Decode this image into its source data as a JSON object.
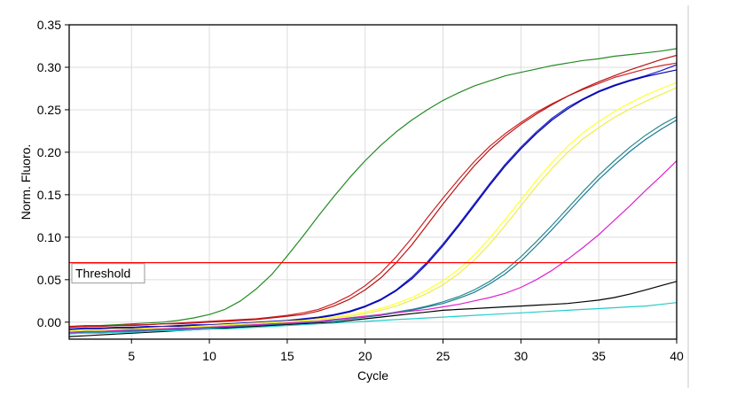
{
  "chart_data": {
    "type": "line",
    "xlabel": "Cycle",
    "ylabel": "Norm. Fluoro.",
    "xlim": [
      1,
      40
    ],
    "ylim": [
      -0.02,
      0.35
    ],
    "x_ticks": [
      5,
      10,
      15,
      20,
      25,
      30,
      35,
      40
    ],
    "y_ticks": [
      0.0,
      0.05,
      0.1,
      0.15,
      0.2,
      0.25,
      0.3,
      0.35
    ],
    "y_tick_labels": [
      "0.00",
      "0.05",
      "0.10",
      "0.15",
      "0.20",
      "0.25",
      "0.30",
      "0.35"
    ],
    "grid": true,
    "threshold": {
      "label": "Threshold",
      "value": 0.07,
      "color": "#ff0000"
    },
    "x": [
      1,
      2,
      3,
      4,
      5,
      6,
      7,
      8,
      9,
      10,
      11,
      12,
      13,
      14,
      15,
      16,
      17,
      18,
      19,
      20,
      21,
      22,
      23,
      24,
      25,
      26,
      27,
      28,
      29,
      30,
      31,
      32,
      33,
      34,
      35,
      36,
      37,
      38,
      39,
      40
    ],
    "series": [
      {
        "color": "#228b22",
        "values": [
          -0.005,
          -0.004,
          -0.004,
          -0.003,
          -0.002,
          -0.001,
          0.0,
          0.002,
          0.005,
          0.009,
          0.015,
          0.025,
          0.039,
          0.056,
          0.078,
          0.101,
          0.125,
          0.148,
          0.17,
          0.19,
          0.208,
          0.224,
          0.238,
          0.25,
          0.261,
          0.27,
          0.278,
          0.284,
          0.29,
          0.294,
          0.298,
          0.302,
          0.305,
          0.308,
          0.31,
          0.313,
          0.315,
          0.317,
          0.319,
          0.322
        ]
      },
      {
        "color": "#cc2222",
        "values": [
          -0.005,
          -0.005,
          -0.004,
          -0.004,
          -0.003,
          -0.003,
          -0.002,
          -0.001,
          0.0,
          0.001,
          0.002,
          0.003,
          0.004,
          0.006,
          0.008,
          0.011,
          0.015,
          0.022,
          0.031,
          0.043,
          0.058,
          0.077,
          0.099,
          0.123,
          0.146,
          0.168,
          0.189,
          0.207,
          0.222,
          0.235,
          0.247,
          0.257,
          0.266,
          0.274,
          0.281,
          0.288,
          0.293,
          0.298,
          0.302,
          0.305
        ]
      },
      {
        "color": "#bb1111",
        "values": [
          -0.006,
          -0.005,
          -0.005,
          -0.004,
          -0.004,
          -0.003,
          -0.002,
          -0.002,
          -0.001,
          0.0,
          0.001,
          0.002,
          0.003,
          0.005,
          0.007,
          0.009,
          0.013,
          0.019,
          0.027,
          0.038,
          0.052,
          0.07,
          0.091,
          0.115,
          0.139,
          0.162,
          0.184,
          0.203,
          0.219,
          0.233,
          0.245,
          0.256,
          0.266,
          0.275,
          0.283,
          0.29,
          0.297,
          0.303,
          0.309,
          0.314
        ]
      },
      {
        "color": "#1a1acc",
        "values": [
          -0.008,
          -0.007,
          -0.007,
          -0.006,
          -0.006,
          -0.005,
          -0.005,
          -0.004,
          -0.003,
          -0.003,
          -0.002,
          -0.001,
          0.0,
          0.001,
          0.002,
          0.004,
          0.006,
          0.009,
          0.013,
          0.019,
          0.027,
          0.038,
          0.053,
          0.071,
          0.092,
          0.115,
          0.139,
          0.163,
          0.186,
          0.206,
          0.224,
          0.24,
          0.253,
          0.263,
          0.272,
          0.279,
          0.285,
          0.29,
          0.296,
          0.303
        ]
      },
      {
        "color": "#0000aa",
        "values": [
          -0.009,
          -0.008,
          -0.008,
          -0.007,
          -0.007,
          -0.006,
          -0.006,
          -0.005,
          -0.004,
          -0.004,
          -0.003,
          -0.002,
          -0.001,
          0.0,
          0.001,
          0.003,
          0.005,
          0.008,
          0.012,
          0.018,
          0.026,
          0.037,
          0.051,
          0.069,
          0.09,
          0.113,
          0.137,
          0.161,
          0.184,
          0.204,
          0.222,
          0.238,
          0.251,
          0.262,
          0.271,
          0.278,
          0.284,
          0.289,
          0.293,
          0.297
        ]
      },
      {
        "color": "#ffff33",
        "values": [
          -0.01,
          -0.009,
          -0.009,
          -0.008,
          -0.008,
          -0.007,
          -0.006,
          -0.006,
          -0.005,
          -0.004,
          -0.003,
          -0.002,
          -0.001,
          0.0,
          0.001,
          0.002,
          0.004,
          0.006,
          0.009,
          0.012,
          0.016,
          0.022,
          0.029,
          0.038,
          0.049,
          0.062,
          0.079,
          0.099,
          0.121,
          0.144,
          0.167,
          0.188,
          0.207,
          0.223,
          0.236,
          0.248,
          0.258,
          0.267,
          0.275,
          0.282
        ]
      },
      {
        "color": "#eeee44",
        "values": [
          -0.011,
          -0.01,
          -0.01,
          -0.009,
          -0.009,
          -0.008,
          -0.007,
          -0.007,
          -0.006,
          -0.005,
          -0.004,
          -0.003,
          -0.002,
          -0.001,
          0.0,
          0.001,
          0.003,
          0.005,
          0.007,
          0.01,
          0.014,
          0.019,
          0.026,
          0.034,
          0.044,
          0.057,
          0.073,
          0.092,
          0.114,
          0.137,
          0.16,
          0.181,
          0.2,
          0.216,
          0.229,
          0.241,
          0.251,
          0.26,
          0.268,
          0.276
        ]
      },
      {
        "color": "#2a8a8a",
        "values": [
          -0.012,
          -0.011,
          -0.011,
          -0.01,
          -0.01,
          -0.009,
          -0.008,
          -0.008,
          -0.007,
          -0.006,
          -0.005,
          -0.004,
          -0.003,
          -0.002,
          -0.001,
          0.0,
          0.001,
          0.003,
          0.005,
          0.007,
          0.009,
          0.012,
          0.015,
          0.019,
          0.024,
          0.03,
          0.038,
          0.048,
          0.061,
          0.077,
          0.095,
          0.114,
          0.134,
          0.154,
          0.173,
          0.19,
          0.206,
          0.22,
          0.232,
          0.242
        ]
      },
      {
        "color": "#1a7a9a",
        "values": [
          -0.013,
          -0.012,
          -0.012,
          -0.011,
          -0.011,
          -0.01,
          -0.009,
          -0.009,
          -0.008,
          -0.007,
          -0.006,
          -0.005,
          -0.004,
          -0.003,
          -0.002,
          -0.001,
          0.0,
          0.002,
          0.004,
          0.006,
          0.008,
          0.011,
          0.014,
          0.018,
          0.022,
          0.028,
          0.035,
          0.045,
          0.057,
          0.072,
          0.09,
          0.109,
          0.129,
          0.149,
          0.168,
          0.185,
          0.201,
          0.215,
          0.227,
          0.238
        ]
      },
      {
        "color": "#dd22cc",
        "values": [
          -0.012,
          -0.011,
          -0.011,
          -0.01,
          -0.009,
          -0.009,
          -0.008,
          -0.007,
          -0.007,
          -0.006,
          -0.005,
          -0.004,
          -0.003,
          -0.002,
          -0.001,
          0.0,
          0.001,
          0.003,
          0.005,
          0.007,
          0.009,
          0.011,
          0.013,
          0.015,
          0.018,
          0.021,
          0.025,
          0.029,
          0.034,
          0.041,
          0.05,
          0.061,
          0.074,
          0.088,
          0.103,
          0.12,
          0.137,
          0.155,
          0.172,
          0.19
        ]
      },
      {
        "color": "#000000",
        "values": [
          -0.017,
          -0.016,
          -0.015,
          -0.014,
          -0.013,
          -0.012,
          -0.011,
          -0.01,
          -0.009,
          -0.008,
          -0.007,
          -0.006,
          -0.005,
          -0.004,
          -0.003,
          -0.002,
          -0.001,
          0.0,
          0.002,
          0.004,
          0.006,
          0.008,
          0.01,
          0.012,
          0.014,
          0.015,
          0.016,
          0.017,
          0.018,
          0.019,
          0.02,
          0.021,
          0.022,
          0.024,
          0.026,
          0.029,
          0.033,
          0.038,
          0.043,
          0.048
        ]
      },
      {
        "color": "#22cccc",
        "values": [
          -0.014,
          -0.013,
          -0.013,
          -0.012,
          -0.012,
          -0.011,
          -0.01,
          -0.01,
          -0.009,
          -0.008,
          -0.008,
          -0.007,
          -0.006,
          -0.005,
          -0.004,
          -0.003,
          -0.002,
          -0.001,
          0.0,
          0.001,
          0.002,
          0.003,
          0.004,
          0.005,
          0.006,
          0.007,
          0.008,
          0.009,
          0.01,
          0.011,
          0.012,
          0.013,
          0.014,
          0.015,
          0.016,
          0.017,
          0.018,
          0.019,
          0.021,
          0.023
        ]
      }
    ]
  }
}
